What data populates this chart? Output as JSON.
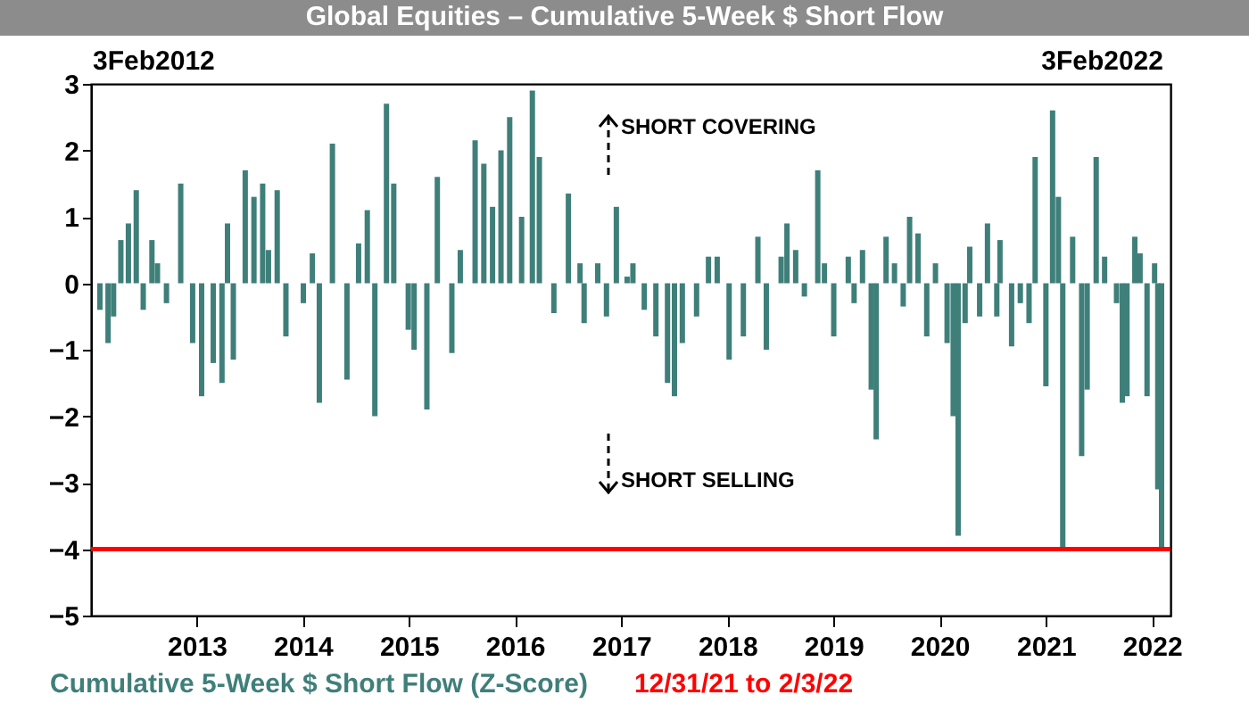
{
  "chart_data": {
    "type": "bar",
    "title": "Global Equities – Cumulative 5-Week $ Short Flow",
    "x": [
      "2012-02-03",
      "2012-03-02",
      "2012-03-21",
      "2012-04-15",
      "2012-05-11",
      "2012-06-07",
      "2012-07-01",
      "2012-07-31",
      "2012-08-19",
      "2012-09-19",
      "2012-11-07",
      "2012-12-18",
      "2013-01-18",
      "2013-02-27",
      "2013-03-29",
      "2013-04-17",
      "2013-05-07",
      "2013-06-17",
      "2013-07-17",
      "2013-08-16",
      "2013-09-05",
      "2013-10-05",
      "2013-11-04",
      "2014-01-03",
      "2014-02-03",
      "2014-02-27",
      "2014-04-13",
      "2014-06-02",
      "2014-07-12",
      "2014-08-11",
      "2014-09-06",
      "2014-10-16",
      "2014-11-10",
      "2014-12-30",
      "2015-01-19",
      "2015-03-04",
      "2015-04-09",
      "2015-05-29",
      "2015-06-27",
      "2015-08-17",
      "2015-09-16",
      "2015-10-16",
      "2015-11-14",
      "2015-12-14",
      "2016-01-24",
      "2016-03-01",
      "2016-03-25",
      "2016-05-14",
      "2016-07-03",
      "2016-08-12",
      "2016-08-26",
      "2016-10-12",
      "2016-11-11",
      "2016-12-15",
      "2017-01-21",
      "2017-02-10",
      "2017-03-21",
      "2017-04-30",
      "2017-06-09",
      "2017-07-03",
      "2017-07-30",
      "2017-09-17",
      "2017-10-28",
      "2017-11-27",
      "2018-01-07",
      "2018-02-25",
      "2018-04-16",
      "2018-05-15",
      "2018-07-05",
      "2018-07-25",
      "2018-08-24",
      "2018-09-23",
      "2018-11-08",
      "2018-12-01",
      "2019-01-02",
      "2019-02-21",
      "2019-03-13",
      "2019-04-11",
      "2019-05-11",
      "2019-05-28",
      "2019-07-01",
      "2019-07-30",
      "2019-08-29",
      "2019-09-20",
      "2019-10-19",
      "2019-11-18",
      "2019-12-18",
      "2020-01-27",
      "2020-02-17",
      "2020-03-05",
      "2020-03-29",
      "2020-04-14",
      "2020-05-18",
      "2020-06-14",
      "2020-07-16",
      "2020-07-27",
      "2020-09-05",
      "2020-10-05",
      "2020-11-04",
      "2020-11-25",
      "2021-01-01",
      "2021-01-24",
      "2021-02-13",
      "2021-02-28",
      "2021-04-03",
      "2021-05-04",
      "2021-05-23",
      "2021-06-23",
      "2021-07-22",
      "2021-09-01",
      "2021-09-21",
      "2021-10-07",
      "2021-11-03",
      "2021-11-21",
      "2021-12-15",
      "2022-01-10",
      "2022-01-21",
      "2022-02-03"
    ],
    "series": [
      {
        "name": "Cumulative 5-Week $ Short Flow (Z-Score)",
        "color": "#3f7f7a",
        "values": [
          -0.4,
          -0.9,
          -0.5,
          0.65,
          0.9,
          1.4,
          -0.4,
          0.65,
          0.3,
          -0.3,
          1.5,
          -0.9,
          -1.7,
          -1.2,
          -1.5,
          0.9,
          -1.15,
          1.7,
          1.3,
          1.5,
          0.5,
          1.4,
          -0.8,
          -0.3,
          0.45,
          -1.8,
          2.1,
          -1.45,
          0.6,
          1.1,
          -2.0,
          2.7,
          1.5,
          -0.7,
          -1.0,
          -1.9,
          1.6,
          -1.05,
          0.5,
          2.15,
          1.8,
          1.15,
          2.0,
          2.5,
          1.0,
          2.9,
          1.9,
          -0.45,
          1.35,
          0.3,
          -0.6,
          0.3,
          -0.5,
          1.15,
          0.1,
          0.3,
          -0.4,
          -0.8,
          -1.5,
          -1.7,
          -0.9,
          -0.5,
          0.4,
          0.4,
          -1.15,
          -0.8,
          0.7,
          -1.0,
          0.4,
          0.9,
          0.5,
          -0.2,
          1.7,
          0.3,
          -0.8,
          0.4,
          -0.3,
          0.5,
          -1.6,
          -2.35,
          0.7,
          0.3,
          -0.35,
          1.0,
          0.75,
          -0.8,
          0.3,
          -0.9,
          -2.0,
          -3.8,
          -0.6,
          0.55,
          -0.5,
          0.9,
          -0.5,
          0.65,
          -0.95,
          -0.3,
          -0.6,
          1.9,
          -1.55,
          2.6,
          1.3,
          -4.0,
          0.7,
          -2.6,
          -1.6,
          1.9,
          0.4,
          -0.3,
          -1.8,
          -1.7,
          0.7,
          0.45,
          -1.7,
          0.3,
          -3.1,
          -4.0
        ]
      }
    ],
    "xlim": [
      "2012-02-03",
      "2022-02-03"
    ],
    "xticks": [
      "2013",
      "2014",
      "2015",
      "2016",
      "2017",
      "2018",
      "2019",
      "2020",
      "2021",
      "2022"
    ],
    "ylim": [
      -5,
      3
    ],
    "yticks": [
      -5,
      -4,
      -3,
      -2,
      -1,
      0,
      1,
      2,
      3
    ],
    "ref_lines": [
      {
        "axis": "y",
        "value": -4,
        "label": "12/31/21 to 2/3/22",
        "color": "#ff0000"
      }
    ],
    "annotations": [
      "3Feb2012",
      "3Feb2022",
      "SHORT COVERING",
      "SHORT SELLING"
    ],
    "legend": "bottom",
    "grid": false
  }
}
